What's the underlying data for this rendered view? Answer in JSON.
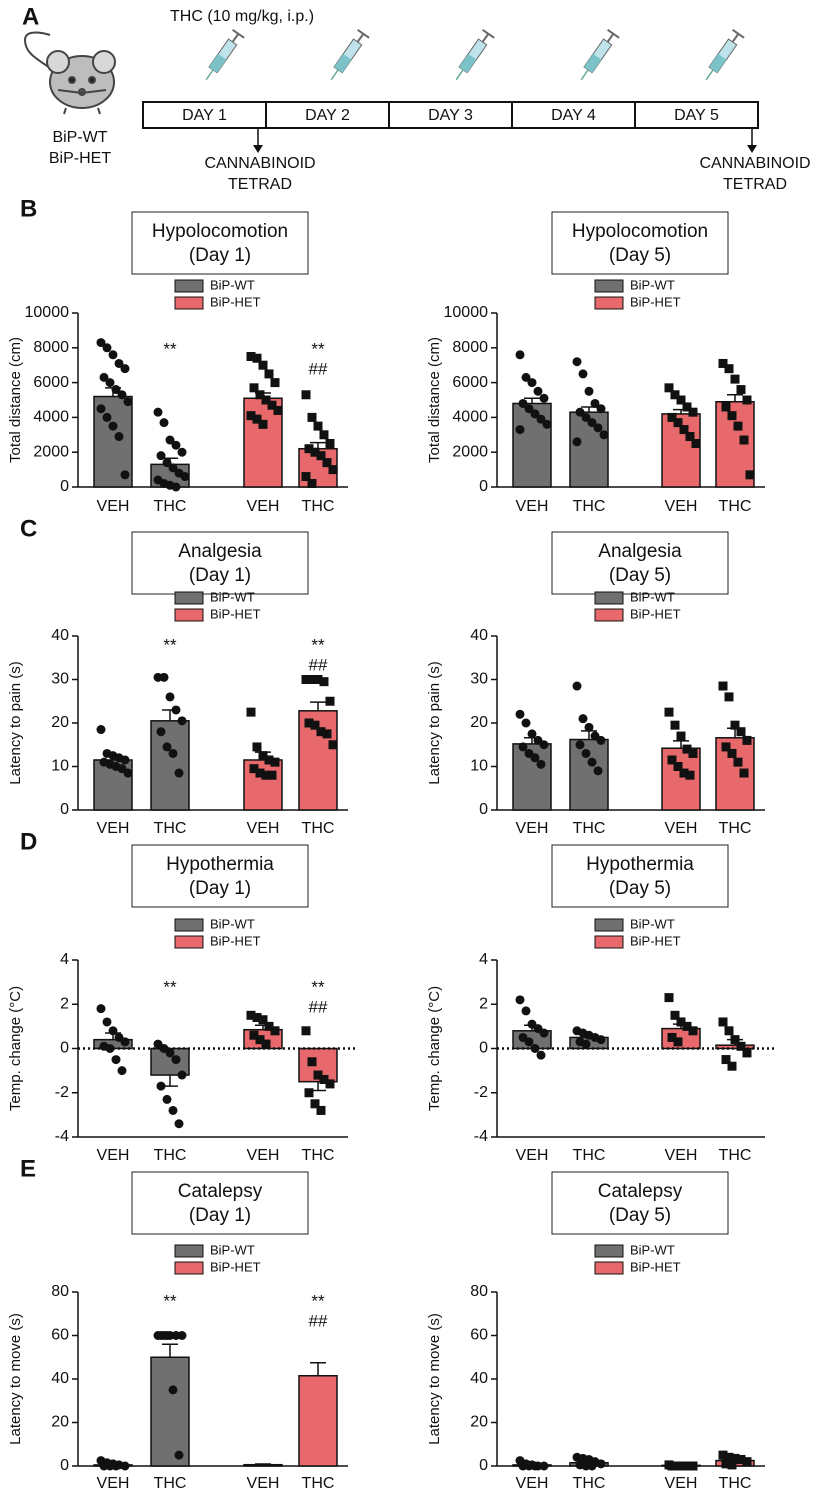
{
  "diagram": {
    "panel_label": "A",
    "treatment": "THC (10 mg/kg, i.p.)",
    "groups": [
      "BiP-WT",
      "BiP-HET"
    ],
    "days": [
      "DAY 1",
      "DAY 2",
      "DAY 3",
      "DAY 4",
      "DAY 5"
    ],
    "test_day1": [
      "CANNABINOID",
      "TETRAD"
    ],
    "test_day5": [
      "CANNABINOID",
      "TETRAD"
    ]
  },
  "chart_data": [
    {
      "type": "bar",
      "panel_label": "B",
      "title": "Hypolocomotion",
      "subtitle": "(Day 1)",
      "ylabel": "Total distance (cm)",
      "categories": [
        "VEH",
        "THC",
        "VEH",
        "THC"
      ],
      "ylim": [
        0,
        10000
      ],
      "yticks": [
        0,
        2000,
        4000,
        6000,
        8000,
        10000
      ],
      "series": [
        {
          "name": "BiP-WT",
          "color": "#707070",
          "marker": "circle",
          "values": [
            5200,
            1300,
            null,
            null
          ],
          "errors": [
            500,
            350,
            null,
            null
          ],
          "points": [
            [
              8300,
              8000,
              7600,
              7100,
              6800,
              6300,
              6000,
              5600,
              5300,
              4900,
              4500,
              4000,
              3500,
              2900,
              700
            ],
            [
              4300,
              3700,
              2700,
              2400,
              2000,
              1800,
              1400,
              1100,
              800,
              600,
              400,
              200,
              100,
              0
            ],
            null,
            null
          ]
        },
        {
          "name": "BiP-HET",
          "color": "#e8696b",
          "marker": "square",
          "values": [
            null,
            null,
            5100,
            2200
          ],
          "errors": [
            null,
            null,
            300,
            350
          ],
          "points": [
            null,
            null,
            [
              7500,
              7400,
              7000,
              6500,
              6000,
              5700,
              5300,
              5000,
              4700,
              4400,
              4100,
              3900,
              3600
            ],
            [
              5300,
              4000,
              3500,
              3000,
              2500,
              2200,
              2000,
              1800,
              1400,
              1000,
              600,
              200
            ]
          ]
        }
      ],
      "annotations": [
        null,
        [
          "**"
        ],
        null,
        [
          "**",
          "##"
        ]
      ]
    },
    {
      "type": "bar",
      "title": "Hypolocomotion",
      "subtitle": "(Day 5)",
      "ylabel": "Total distance (cm)",
      "categories": [
        "VEH",
        "THC",
        "VEH",
        "THC"
      ],
      "ylim": [
        0,
        10000
      ],
      "yticks": [
        0,
        2000,
        4000,
        6000,
        8000,
        10000
      ],
      "series": [
        {
          "name": "BiP-WT",
          "color": "#707070",
          "marker": "circle",
          "values": [
            4800,
            4300,
            null,
            null
          ],
          "errors": [
            300,
            300,
            null,
            null
          ],
          "points": [
            [
              7600,
              6300,
              6000,
              5500,
              5100,
              4800,
              4500,
              4200,
              3900,
              3600,
              3300
            ],
            [
              7200,
              6500,
              5500,
              4800,
              4500,
              4300,
              4000,
              3700,
              3400,
              3000,
              2600
            ],
            null,
            null
          ]
        },
        {
          "name": "BiP-HET",
          "color": "#e8696b",
          "marker": "square",
          "values": [
            null,
            null,
            4200,
            4900
          ],
          "errors": [
            null,
            null,
            250,
            400
          ],
          "points": [
            null,
            null,
            [
              5700,
              5300,
              5000,
              4600,
              4300,
              4000,
              3700,
              3300,
              2900,
              2500
            ],
            [
              7100,
              6800,
              6200,
              5600,
              5000,
              4600,
              4100,
              3500,
              2700,
              700
            ]
          ]
        }
      ],
      "annotations": [
        null,
        null,
        null,
        null
      ]
    },
    {
      "type": "bar",
      "panel_label": "C",
      "title": "Analgesia",
      "subtitle": "(Day 1)",
      "ylabel": "Latency to pain (s)",
      "categories": [
        "VEH",
        "THC",
        "VEH",
        "THC"
      ],
      "ylim": [
        0,
        40
      ],
      "yticks": [
        0,
        10,
        20,
        30,
        40
      ],
      "series": [
        {
          "name": "BiP-WT",
          "color": "#707070",
          "marker": "circle",
          "values": [
            11.5,
            20.5,
            null,
            null
          ],
          "errors": [
            0.9,
            2.5,
            null,
            null
          ],
          "points": [
            [
              18.5,
              13,
              12.5,
              12,
              11.5,
              11,
              10.5,
              10,
              9.5,
              8.5
            ],
            [
              30.5,
              30.5,
              26,
              23,
              20.5,
              18,
              14.5,
              13,
              8.5
            ],
            null,
            null
          ]
        },
        {
          "name": "BiP-HET",
          "color": "#e8696b",
          "marker": "square",
          "values": [
            null,
            null,
            11.5,
            22.8
          ],
          "errors": [
            null,
            null,
            1.8,
            2.0
          ],
          "points": [
            null,
            null,
            [
              22.5,
              14.5,
              12.5,
              11.5,
              11,
              9.5,
              8.5,
              8,
              8
            ],
            [
              30,
              30,
              30,
              29.5,
              25,
              20,
              19.5,
              18,
              17.5,
              15
            ]
          ]
        }
      ],
      "annotations": [
        null,
        [
          "**"
        ],
        null,
        [
          "**",
          "##"
        ]
      ]
    },
    {
      "type": "bar",
      "title": "Analgesia",
      "subtitle": "(Day 5)",
      "ylabel": "Latency to pain (s)",
      "categories": [
        "VEH",
        "THC",
        "VEH",
        "THC"
      ],
      "ylim": [
        0,
        40
      ],
      "yticks": [
        0,
        10,
        20,
        30,
        40
      ],
      "series": [
        {
          "name": "BiP-WT",
          "color": "#707070",
          "marker": "circle",
          "values": [
            15.2,
            16.2,
            null,
            null
          ],
          "errors": [
            1.4,
            2.0,
            null,
            null
          ],
          "points": [
            [
              22,
              20,
              17.5,
              16,
              15,
              14.5,
              13,
              12,
              10.5
            ],
            [
              28.5,
              21,
              19,
              17,
              16,
              15,
              13,
              11,
              9
            ],
            null,
            null
          ]
        },
        {
          "name": "BiP-HET",
          "color": "#e8696b",
          "marker": "square",
          "values": [
            null,
            null,
            14.2,
            16.6
          ],
          "errors": [
            null,
            null,
            1.7,
            2.2
          ],
          "points": [
            null,
            null,
            [
              22.5,
              19.5,
              17,
              14,
              13,
              11.5,
              10,
              8.5,
              8
            ],
            [
              28.5,
              26,
              19.5,
              18,
              16,
              14.5,
              13,
              11,
              8.5
            ]
          ]
        }
      ],
      "annotations": [
        null,
        null,
        null,
        null
      ]
    },
    {
      "type": "bar",
      "panel_label": "D",
      "title": "Hypothermia",
      "subtitle": "(Day 1)",
      "ylabel": "Temp. change (°C)",
      "categories": [
        "VEH",
        "THC",
        "VEH",
        "THC"
      ],
      "ylim": [
        -4,
        4
      ],
      "yticks": [
        -4,
        -2,
        0,
        2,
        4
      ],
      "zero_line": "dotted",
      "series": [
        {
          "name": "BiP-WT",
          "color": "#707070",
          "marker": "circle",
          "values": [
            0.4,
            -1.2,
            null,
            null
          ],
          "errors": [
            0.3,
            0.5,
            null,
            null
          ],
          "points": [
            [
              1.8,
              1.2,
              0.8,
              0.5,
              0.3,
              0.1,
              0,
              -0.5,
              -1
            ],
            [
              0.2,
              0,
              -0.2,
              -0.5,
              -1.2,
              -1.7,
              -2.3,
              -2.8,
              -3.4
            ],
            null,
            null
          ]
        },
        {
          "name": "BiP-HET",
          "color": "#e8696b",
          "marker": "square",
          "values": [
            null,
            null,
            0.85,
            -1.5
          ],
          "errors": [
            null,
            null,
            0.2,
            0.4
          ],
          "points": [
            null,
            null,
            [
              1.5,
              1.4,
              1.3,
              1,
              0.8,
              0.6,
              0.4,
              0.2
            ],
            [
              0.8,
              -0.6,
              -1.2,
              -1.4,
              -1.6,
              -2,
              -2.5,
              -2.8
            ]
          ]
        }
      ],
      "annotations": [
        null,
        [
          "**"
        ],
        null,
        [
          "**",
          "##"
        ]
      ]
    },
    {
      "type": "bar",
      "title": "Hypothermia",
      "subtitle": "(Day 5)",
      "ylabel": "Temp. change (°C)",
      "categories": [
        "VEH",
        "THC",
        "VEH",
        "THC"
      ],
      "ylim": [
        -4,
        4
      ],
      "yticks": [
        -4,
        -2,
        0,
        2,
        4
      ],
      "zero_line": "dotted",
      "series": [
        {
          "name": "BiP-WT",
          "color": "#707070",
          "marker": "circle",
          "values": [
            0.8,
            0.5,
            null,
            null
          ],
          "errors": [
            0.25,
            0.1,
            null,
            null
          ],
          "points": [
            [
              2.2,
              1.7,
              1.1,
              0.9,
              0.7,
              0.5,
              0.3,
              0,
              -0.3
            ],
            [
              0.8,
              0.7,
              0.6,
              0.5,
              0.4,
              0.3,
              0.2
            ],
            null,
            null
          ]
        },
        {
          "name": "BiP-HET",
          "color": "#e8696b",
          "marker": "square",
          "values": [
            null,
            null,
            0.9,
            0.15
          ],
          "errors": [
            null,
            null,
            0.2,
            0.25
          ],
          "points": [
            null,
            null,
            [
              2.3,
              1.5,
              1.2,
              1,
              0.8,
              0.5,
              0.3
            ],
            [
              1.2,
              0.8,
              0.4,
              0.1,
              -0.2,
              -0.5,
              -0.8
            ]
          ]
        }
      ],
      "annotations": [
        null,
        null,
        null,
        null
      ]
    },
    {
      "type": "bar",
      "panel_label": "E",
      "title": "Catalepsy",
      "subtitle": "(Day 1)",
      "ylabel": "Latency to move (s)",
      "categories": [
        "VEH",
        "THC",
        "VEH",
        "THC"
      ],
      "ylim": [
        0,
        80
      ],
      "yticks": [
        0,
        20,
        40,
        60,
        80
      ],
      "series": [
        {
          "name": "BiP-WT",
          "color": "#707070",
          "marker": "circle",
          "values": [
            0.5,
            50,
            null,
            null
          ],
          "errors": [
            0.3,
            6,
            null,
            null
          ],
          "points": [
            [
              2.5,
              1.5,
              1,
              0.5,
              0,
              0,
              0,
              0
            ],
            [
              60,
              60,
              60,
              60,
              60,
              60,
              60,
              35,
              5
            ],
            null,
            null
          ]
        },
        {
          "name": "BiP-HET",
          "color": "#e8696b",
          "marker": "square",
          "values": [
            null,
            null,
            0.6,
            41.5
          ],
          "errors": [
            null,
            null,
            0.3,
            6
          ]
        },
        null
      ],
      "annotations": [
        null,
        [
          "**"
        ],
        null,
        [
          "**",
          "##"
        ]
      ]
    },
    {
      "type": "bar",
      "title": "Catalepsy",
      "subtitle": "(Day 5)",
      "ylabel": "Latency to move (s)",
      "categories": [
        "VEH",
        "THC",
        "VEH",
        "THC"
      ],
      "ylim": [
        0,
        80
      ],
      "yticks": [
        0,
        20,
        40,
        60,
        80
      ],
      "series": [
        {
          "name": "BiP-WT",
          "color": "#707070",
          "marker": "circle",
          "values": [
            0.5,
            1.5,
            null,
            null
          ],
          "errors": [
            0.3,
            0.5,
            null,
            null
          ],
          "points": [
            [
              2.5,
              1,
              0.5,
              0,
              0,
              0,
              0,
              0
            ],
            [
              4,
              3.5,
              3,
              2,
              1,
              0.5,
              0,
              0
            ],
            null,
            null
          ]
        },
        {
          "name": "BiP-HET",
          "color": "#e8696b",
          "marker": "square",
          "values": [
            null,
            null,
            0.3,
            2.5
          ],
          "errors": [
            null,
            null,
            0.2,
            0.6
          ],
          "points": [
            null,
            null,
            [
              0.5,
              0,
              0,
              0,
              0,
              0,
              0
            ],
            [
              5,
              4,
              3.5,
              3,
              2,
              1,
              0.5
            ]
          ]
        }
      ],
      "annotations": [
        null,
        null,
        null,
        null
      ]
    }
  ]
}
